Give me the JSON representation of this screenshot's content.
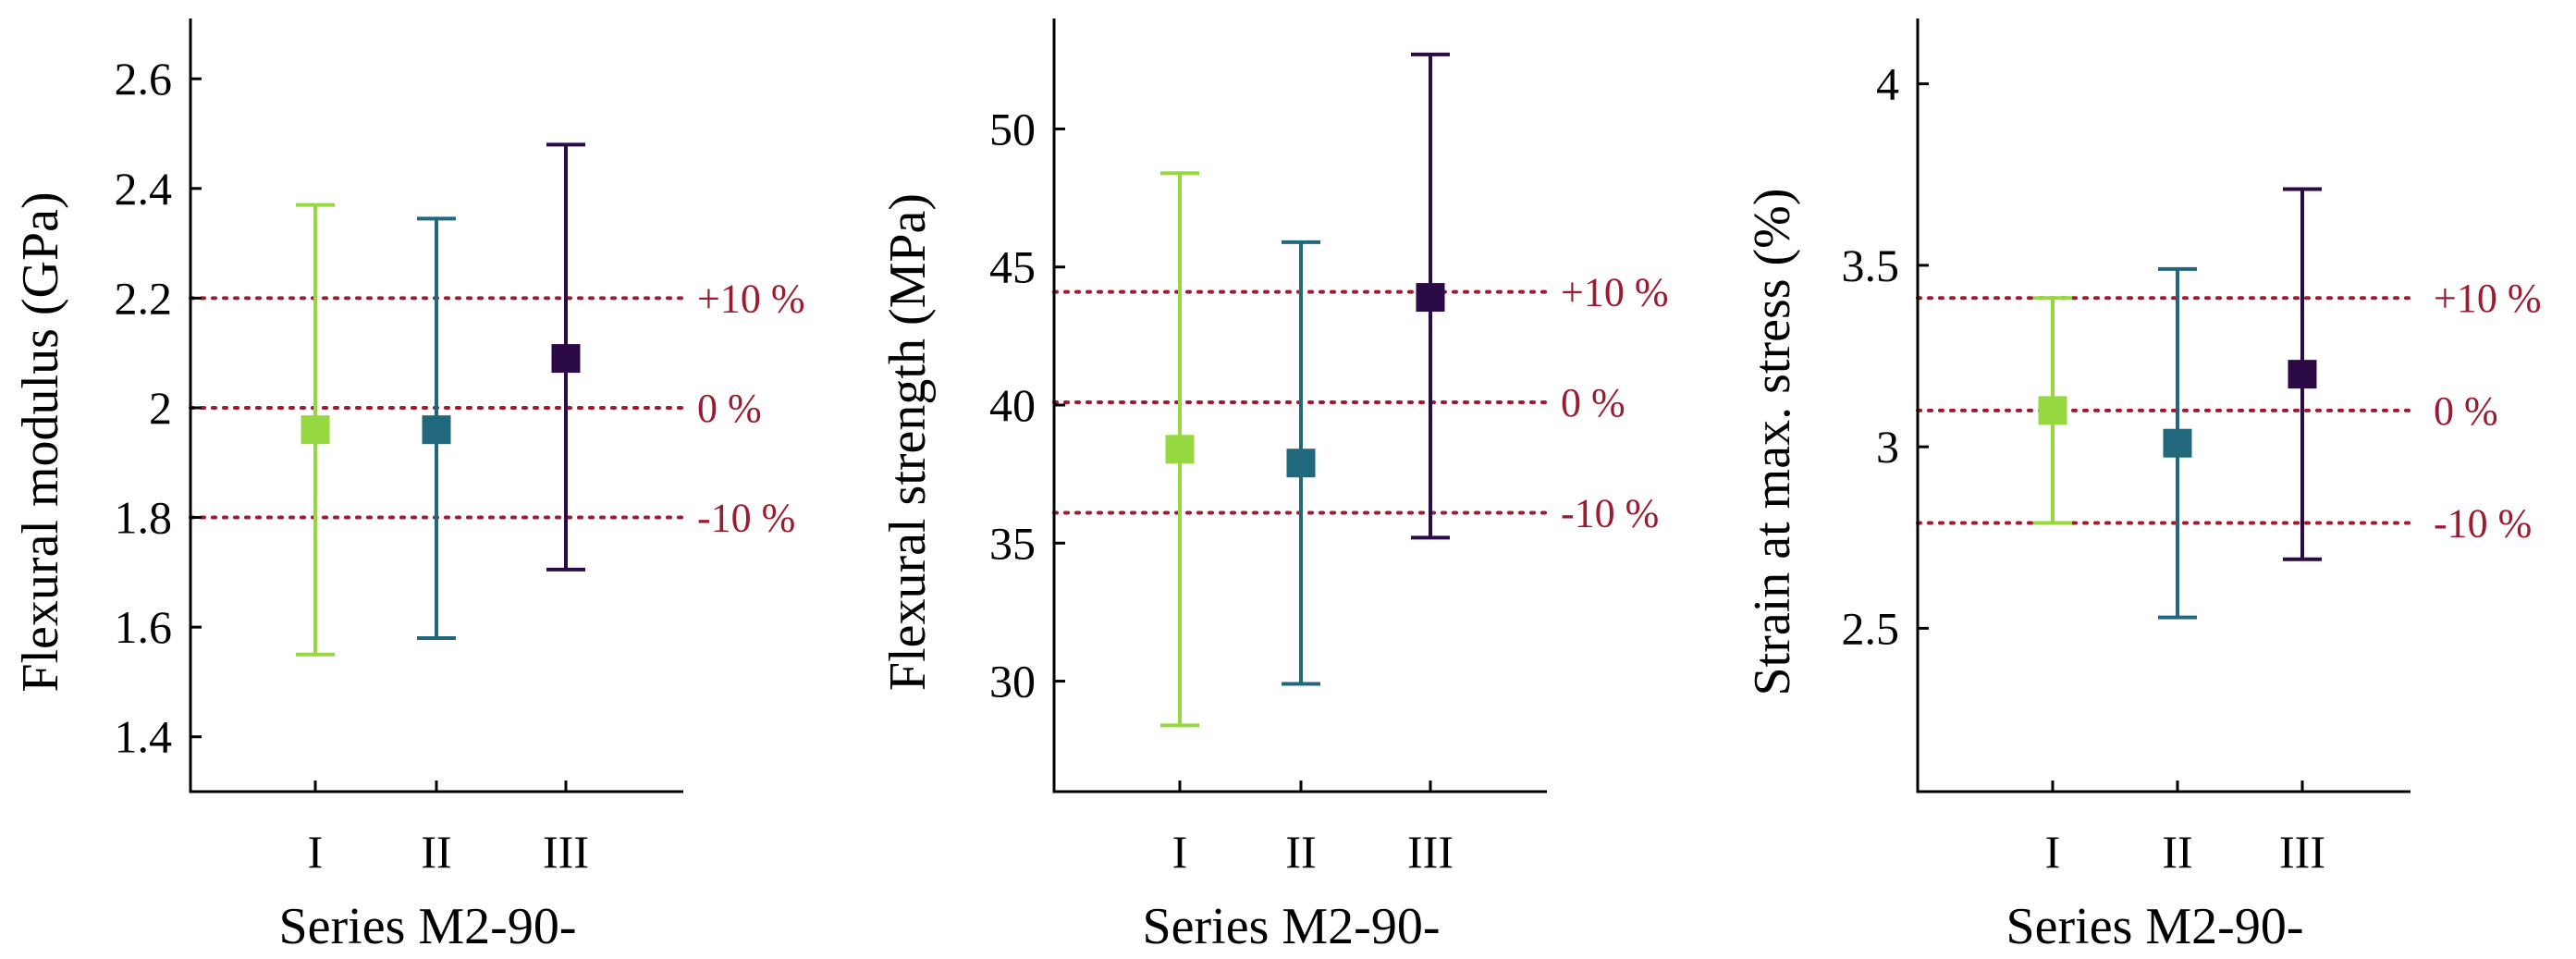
{
  "colors": {
    "series_I": "#95d840",
    "series_II": "#21687c",
    "series_III": "#2c0a46",
    "reference": "#9b1b30",
    "axis": "#000000"
  },
  "chart_data": [
    {
      "type": "errorbar",
      "title": "",
      "xlabel": "Series M2-90-",
      "ylabel": "Flexural modulus (GPa)",
      "categories": [
        "I",
        "II",
        "III"
      ],
      "values": [
        1.96,
        1.96,
        2.09
      ],
      "error_low": [
        1.55,
        1.58,
        1.705
      ],
      "error_high": [
        2.37,
        2.345,
        2.48
      ],
      "ylim": [
        1.3,
        2.71
      ],
      "yticks": [
        1.4,
        1.6,
        1.8,
        2.0,
        2.2,
        2.4,
        2.6
      ],
      "ytick_labels": [
        "1.4",
        "1.6",
        "1.8",
        "2",
        "2.2",
        "2.4",
        "2.6"
      ],
      "reference_lines": [
        {
          "value": 2.2,
          "label": "+10 %"
        },
        {
          "value": 2.0,
          "label": "0 %"
        },
        {
          "value": 1.8,
          "label": "-10 %"
        }
      ]
    },
    {
      "type": "errorbar",
      "title": "",
      "xlabel": "Series M2-90-",
      "ylabel": "Flexural strength (MPa)",
      "categories": [
        "I",
        "II",
        "III"
      ],
      "values": [
        38.4,
        37.9,
        43.9
      ],
      "error_low": [
        28.4,
        29.9,
        35.2
      ],
      "error_high": [
        48.4,
        45.9,
        52.7
      ],
      "ylim": [
        26.0,
        54.0
      ],
      "yticks": [
        30,
        35,
        40,
        45,
        50
      ],
      "ytick_labels": [
        "30",
        "35",
        "40",
        "45",
        "50"
      ],
      "reference_lines": [
        {
          "value": 44.1,
          "label": "+10 %"
        },
        {
          "value": 40.1,
          "label": "0 %"
        },
        {
          "value": 36.1,
          "label": "-10 %"
        }
      ]
    },
    {
      "type": "errorbar",
      "title": "",
      "xlabel": "Series M2-90-",
      "ylabel": "Strain at max. stress (%)",
      "categories": [
        "I",
        "II",
        "III"
      ],
      "values": [
        3.1,
        3.01,
        3.2
      ],
      "error_low": [
        2.79,
        2.53,
        2.69
      ],
      "error_high": [
        3.41,
        3.49,
        3.71
      ],
      "ylim": [
        2.05,
        4.18
      ],
      "yticks": [
        2.5,
        3.0,
        3.5,
        4.0
      ],
      "ytick_labels": [
        "2.5",
        "3",
        "3.5",
        "4"
      ],
      "reference_lines": [
        {
          "value": 3.41,
          "label": "+10 %"
        },
        {
          "value": 3.1,
          "label": "0 %"
        },
        {
          "value": 2.79,
          "label": "-10 %"
        }
      ]
    }
  ]
}
